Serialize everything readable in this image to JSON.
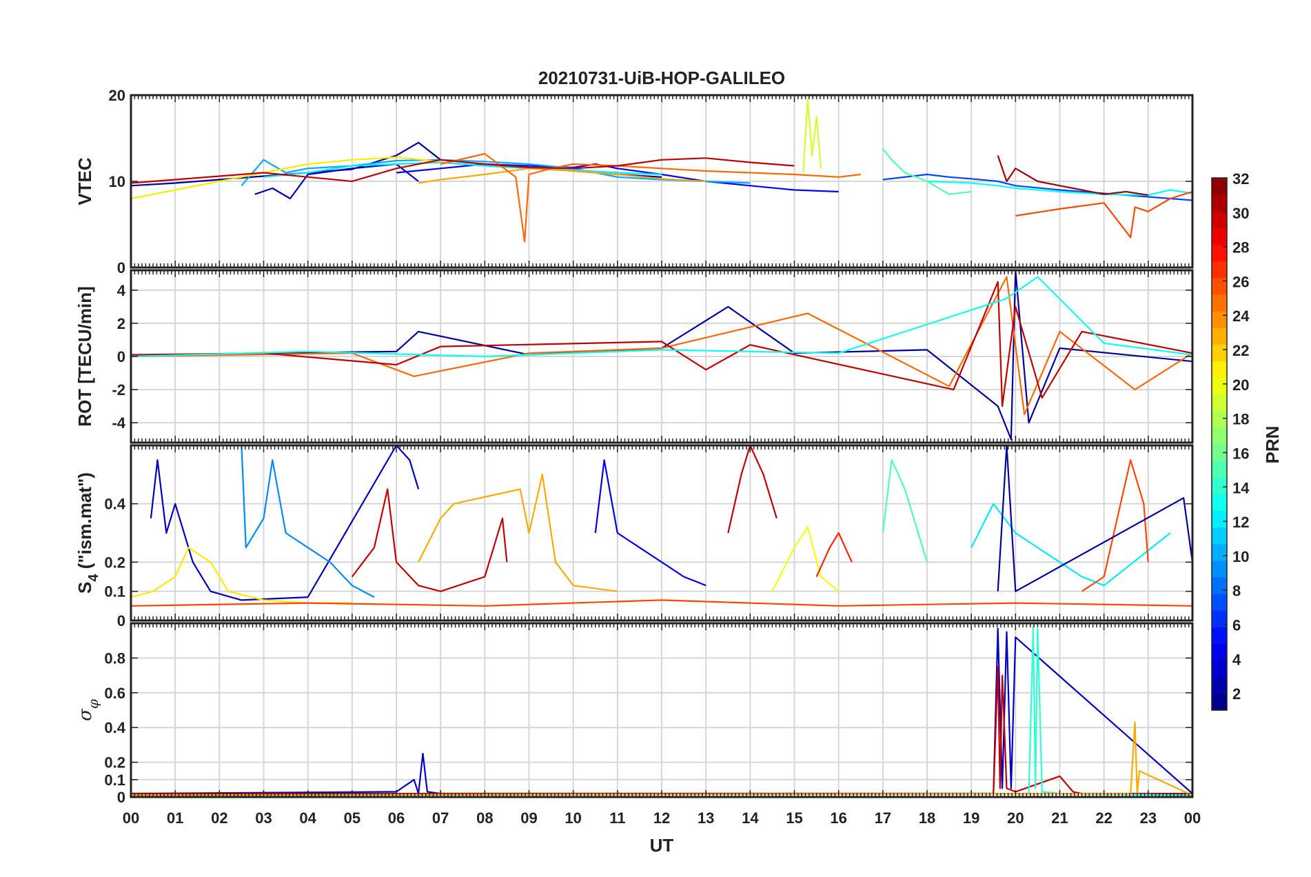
{
  "chart_data": {
    "type": "line",
    "title": "20210731-UiB-HOP-GALILEO",
    "xlabel": "UT",
    "x_ticks": [
      "00",
      "01",
      "02",
      "03",
      "04",
      "05",
      "06",
      "07",
      "08",
      "09",
      "10",
      "11",
      "12",
      "13",
      "14",
      "15",
      "16",
      "17",
      "18",
      "19",
      "20",
      "21",
      "22",
      "23",
      "00"
    ],
    "xlim": [
      0,
      24
    ],
    "grid": true,
    "colorbar": {
      "label": "PRN",
      "range": [
        1,
        32
      ],
      "ticks": [
        "2",
        "4",
        "6",
        "8",
        "10",
        "12",
        "14",
        "16",
        "18",
        "20",
        "22",
        "24",
        "26",
        "28",
        "30",
        "32"
      ],
      "colormap": "jet"
    },
    "panels": [
      {
        "id": "vtec",
        "ylabel": "VTEC",
        "ylim": [
          0,
          20
        ],
        "yticks": [
          "0",
          "10",
          "20"
        ],
        "series": [
          {
            "prn": 2,
            "x": [
              0.0,
              1.0,
              2.0,
              3.0,
              4.0,
              5.0,
              6.0,
              6.5,
              7.0,
              8.0,
              9.0,
              10.0,
              11.0,
              12.0
            ],
            "y": [
              9.5,
              9.8,
              10.2,
              10.6,
              11.0,
              11.4,
              13.0,
              14.5,
              12.5,
              12.0,
              11.6,
              11.2,
              10.8,
              10.5
            ]
          },
          {
            "prn": 3,
            "x": [
              2.8,
              3.2,
              3.6,
              4.0,
              5.0,
              6.0,
              6.5
            ],
            "y": [
              8.5,
              9.2,
              8.0,
              10.8,
              11.5,
              12.0,
              10.0
            ]
          },
          {
            "prn": 5,
            "x": [
              6.0,
              7.0,
              8.0,
              9.0,
              10.0,
              10.5,
              11.0,
              12.0,
              13.0,
              14.0,
              15.0,
              16.0
            ],
            "y": [
              11.0,
              11.5,
              12.0,
              11.8,
              11.6,
              12.0,
              11.5,
              10.8,
              10.0,
              9.5,
              9.0,
              8.8
            ]
          },
          {
            "prn": 7,
            "x": [
              17.0,
              18.0,
              18.5,
              19.0,
              19.6,
              20.0,
              21.0,
              22.0,
              23.0,
              24.0
            ],
            "y": [
              10.2,
              10.8,
              10.5,
              10.3,
              10.0,
              9.5,
              9.0,
              8.6,
              8.2,
              7.8
            ]
          },
          {
            "prn": 10,
            "x": [
              2.5,
              3.0,
              3.5,
              4.0,
              5.0,
              6.0,
              7.0,
              8.0,
              9.0,
              10.0,
              11.0,
              12.0,
              13.0,
              14.0
            ],
            "y": [
              9.5,
              12.5,
              11.0,
              11.5,
              11.8,
              12.4,
              12.5,
              12.3,
              12.0,
              11.5,
              10.5,
              10.2,
              10.0,
              9.8
            ]
          },
          {
            "prn": 12,
            "x": [
              3.0,
              4.0,
              5.0,
              6.0,
              7.0,
              8.0,
              9.0,
              10.0,
              11.0,
              12.0
            ],
            "y": [
              10.5,
              11.0,
              11.8,
              12.0,
              12.2,
              11.8,
              11.5,
              11.3,
              11.0,
              10.8
            ]
          },
          {
            "prn": 13,
            "x": [
              18.0,
              19.0,
              19.6,
              20.0,
              21.0,
              22.0,
              23.0,
              23.5,
              24.0
            ],
            "y": [
              10.0,
              9.8,
              9.5,
              9.2,
              8.8,
              8.5,
              8.4,
              9.0,
              8.6
            ]
          },
          {
            "prn": 15,
            "x": [
              17.0,
              17.2,
              17.5,
              18.0,
              18.5,
              19.0
            ],
            "y": [
              13.8,
              12.5,
              11.0,
              10.0,
              8.5,
              8.8
            ]
          },
          {
            "prn": 19,
            "x": [
              15.2,
              15.3,
              15.4,
              15.5,
              15.6
            ],
            "y": [
              11.0,
              19.5,
              13.0,
              17.5,
              11.5
            ]
          },
          {
            "prn": 21,
            "x": [
              0.0,
              1.0,
              2.0,
              3.0,
              4.0,
              5.0,
              6.0,
              7.0
            ],
            "y": [
              8.0,
              9.0,
              10.0,
              11.0,
              12.0,
              12.5,
              12.8,
              12.3
            ]
          },
          {
            "prn": 23,
            "x": [
              6.5,
              7.0,
              8.0,
              9.0,
              10.0,
              11.0,
              12.0,
              13.0
            ],
            "y": [
              9.8,
              10.2,
              10.8,
              11.5,
              11.2,
              10.8,
              10.3,
              10.0
            ]
          },
          {
            "prn": 25,
            "x": [
              7.0,
              8.0,
              8.7,
              8.9,
              9.0,
              9.5,
              10.0,
              11.0,
              12.0,
              13.0,
              14.0,
              15.0,
              16.0,
              16.5
            ],
            "y": [
              12.0,
              13.2,
              10.5,
              3.0,
              10.8,
              11.5,
              12.0,
              11.8,
              11.5,
              11.2,
              11.0,
              10.8,
              10.5,
              10.8
            ]
          },
          {
            "prn": 26,
            "x": [
              20.0,
              21.0,
              22.0,
              22.6,
              22.7,
              23.0,
              23.5,
              24.0
            ],
            "y": [
              6.0,
              6.8,
              7.5,
              3.5,
              7.0,
              6.5,
              8.0,
              8.8
            ]
          },
          {
            "prn": 30,
            "x": [
              0.0,
              1.0,
              2.0,
              3.0,
              4.0,
              5.0,
              6.0,
              7.0,
              8.0,
              9.0,
              10.0,
              11.0,
              12.0,
              13.0,
              14.0,
              15.0
            ],
            "y": [
              9.8,
              10.2,
              10.6,
              11.0,
              10.5,
              10.0,
              11.5,
              12.5,
              12.0,
              11.6,
              11.5,
              11.8,
              12.5,
              12.7,
              12.2,
              11.8
            ]
          },
          {
            "prn": 31,
            "x": [
              19.6,
              19.8,
              20.0,
              20.5,
              21.0,
              21.5,
              22.0,
              22.5,
              23.0
            ],
            "y": [
              13.0,
              10.0,
              11.5,
              10.0,
              9.5,
              9.0,
              8.5,
              8.8,
              8.4
            ]
          }
        ]
      },
      {
        "id": "rot",
        "ylabel": "ROT [TECU/min]",
        "ylim": [
          -5.2,
          5.2
        ],
        "yticks": [
          "-4",
          "-2",
          "0",
          "2",
          "4"
        ],
        "series": [
          {
            "prn": 2,
            "x": [
              0,
              3,
              6,
              6.5,
              9,
              12,
              13.5,
              15,
              18,
              19.6,
              19.9,
              20,
              20.3,
              21,
              24
            ],
            "y": [
              0,
              0.2,
              0.3,
              1.5,
              0.1,
              0.5,
              3.0,
              0.2,
              0.4,
              -3.0,
              -5.0,
              5.2,
              -4.0,
              0.5,
              -0.3
            ]
          },
          {
            "prn": 25,
            "x": [
              0,
              5,
              6.4,
              9,
              12,
              15.3,
              18.5,
              19.8,
              20.2,
              21,
              22.7,
              24
            ],
            "y": [
              0,
              0.2,
              -1.2,
              0.2,
              0.5,
              2.6,
              -1.8,
              4.8,
              -3.5,
              1.5,
              -2.0,
              0.2
            ]
          },
          {
            "prn": 30,
            "x": [
              0,
              3,
              6,
              7,
              12,
              13,
              14,
              18.6,
              19.6,
              19.7,
              20,
              20.6,
              21.5,
              24
            ],
            "y": [
              0.1,
              0.2,
              -0.5,
              0.6,
              0.9,
              -0.8,
              0.7,
              -2.0,
              4.5,
              -3.0,
              3.0,
              -2.5,
              1.5,
              0.2
            ]
          },
          {
            "prn": 13,
            "x": [
              0,
              4,
              8,
              12,
              16,
              19.8,
              20.5,
              22,
              24
            ],
            "y": [
              0,
              0.3,
              0,
              0.4,
              0.2,
              3.5,
              4.8,
              0.8,
              0.1
            ]
          }
        ]
      },
      {
        "id": "s4",
        "ylabel": "S4 (\"ism.mat\")",
        "ylabel_main": "S",
        "ylabel_sub": "4",
        "ylabel_rest": " (\"ism.mat\")",
        "ylim": [
          0,
          0.6
        ],
        "yticks": [
          "0",
          "0.1",
          "0.2",
          "0.4"
        ],
        "series": [
          {
            "prn": 3,
            "x": [
              0.45,
              0.6,
              0.8,
              1.0,
              1.2,
              1.4,
              1.8,
              2.5,
              4,
              6,
              6.3,
              6.5
            ],
            "y": [
              0.35,
              0.55,
              0.3,
              0.4,
              0.3,
              0.2,
              0.1,
              0.07,
              0.08,
              0.6,
              0.55,
              0.45
            ]
          },
          {
            "prn": 9,
            "x": [
              2.5,
              2.6,
              3.0,
              3.2,
              3.5,
              4.0,
              4.5,
              5.0,
              5.5
            ],
            "y": [
              0.6,
              0.25,
              0.35,
              0.55,
              0.3,
              0.25,
              0.2,
              0.12,
              0.08
            ]
          },
          {
            "prn": 21,
            "x": [
              0,
              0.5,
              1.0,
              1.3,
              1.8,
              2.2,
              3,
              4,
              5
            ],
            "y": [
              0.08,
              0.1,
              0.15,
              0.25,
              0.2,
              0.1,
              0.07,
              0.06,
              0.06
            ]
          },
          {
            "prn": 30,
            "x": [
              5.0,
              5.5,
              5.8,
              6.0,
              6.5,
              7.0,
              8.0,
              8.4,
              8.5
            ],
            "y": [
              0.15,
              0.25,
              0.45,
              0.2,
              0.12,
              0.1,
              0.15,
              0.35,
              0.2
            ]
          },
          {
            "prn": 23,
            "x": [
              6.5,
              7.0,
              7.3,
              8.8,
              9.0,
              9.3,
              9.6,
              10.0,
              11.0
            ],
            "y": [
              0.2,
              0.35,
              0.4,
              0.45,
              0.3,
              0.5,
              0.2,
              0.12,
              0.1
            ]
          },
          {
            "prn": 4,
            "x": [
              10.5,
              10.7,
              11.0,
              11.5,
              12.0,
              12.5,
              13.0
            ],
            "y": [
              0.3,
              0.55,
              0.3,
              0.25,
              0.2,
              0.15,
              0.12
            ]
          },
          {
            "prn": 30,
            "x": [
              13.5,
              13.8,
              14.0,
              14.3,
              14.6
            ],
            "y": [
              0.3,
              0.5,
              0.6,
              0.5,
              0.35
            ]
          },
          {
            "prn": 20,
            "x": [
              14.5,
              15.0,
              15.3,
              15.6,
              16.0
            ],
            "y": [
              0.1,
              0.25,
              0.32,
              0.15,
              0.1
            ]
          },
          {
            "prn": 27,
            "x": [
              15.5,
              15.8,
              16.0,
              16.3
            ],
            "y": [
              0.15,
              0.25,
              0.3,
              0.2
            ]
          },
          {
            "prn": 15,
            "x": [
              17.0,
              17.2,
              17.5,
              17.8,
              18.0
            ],
            "y": [
              0.3,
              0.55,
              0.45,
              0.3,
              0.2
            ]
          },
          {
            "prn": 12,
            "x": [
              19.0,
              19.5,
              20.0,
              20.5,
              21.0,
              21.5,
              22.0,
              23.5
            ],
            "y": [
              0.25,
              0.4,
              0.3,
              0.25,
              0.2,
              0.15,
              0.12,
              0.3
            ]
          },
          {
            "prn": 26,
            "x": [
              21.5,
              22.0,
              22.3,
              22.6,
              22.9,
              23.0
            ],
            "y": [
              0.1,
              0.15,
              0.35,
              0.55,
              0.4,
              0.2
            ]
          },
          {
            "prn": 2,
            "x": [
              19.6,
              19.8,
              20.0,
              23.8,
              24.0
            ],
            "y": [
              0.1,
              0.6,
              0.1,
              0.42,
              0.2
            ]
          },
          {
            "prn": 26,
            "x": [
              0,
              4,
              8,
              12,
              16,
              20,
              24
            ],
            "y": [
              0.05,
              0.06,
              0.05,
              0.07,
              0.05,
              0.06,
              0.05
            ]
          }
        ]
      },
      {
        "id": "sigma_phi",
        "ylabel": "σ φ",
        "ylabel_main": "σ",
        "ylabel_sub": "φ",
        "ylim": [
          0,
          1.0
        ],
        "yticks": [
          "0",
          "0.1",
          "0.2",
          "0.4",
          "0.6",
          "0.8"
        ],
        "series": [
          {
            "prn": 3,
            "x": [
              0,
              6.0,
              6.4,
              6.5,
              6.6,
              6.7,
              7,
              19.5,
              19.6,
              19.7,
              19.8,
              19.9,
              20.0,
              24
            ],
            "y": [
              0.02,
              0.03,
              0.1,
              0.02,
              0.25,
              0.03,
              0.02,
              0.02,
              0.97,
              0.05,
              0.95,
              0.05,
              0.92,
              0.02
            ]
          },
          {
            "prn": 30,
            "x": [
              0,
              19.5,
              19.6,
              19.65,
              19.7,
              19.8,
              20,
              21,
              21.3,
              21.5,
              24
            ],
            "y": [
              0.02,
              0.02,
              0.75,
              0.05,
              0.7,
              0.05,
              0.03,
              0.12,
              0.03,
              0.02,
              0.02
            ]
          },
          {
            "prn": 14,
            "x": [
              0,
              20.3,
              20.4,
              20.45,
              20.5,
              20.6,
              21,
              24
            ],
            "y": [
              0.01,
              0.02,
              0.98,
              0.05,
              0.97,
              0.03,
              0.02,
              0.01
            ]
          },
          {
            "prn": 23,
            "x": [
              0,
              22.6,
              22.7,
              22.75,
              22.8,
              24
            ],
            "y": [
              0.01,
              0.02,
              0.43,
              0.02,
              0.15,
              0.01
            ]
          }
        ]
      }
    ]
  }
}
